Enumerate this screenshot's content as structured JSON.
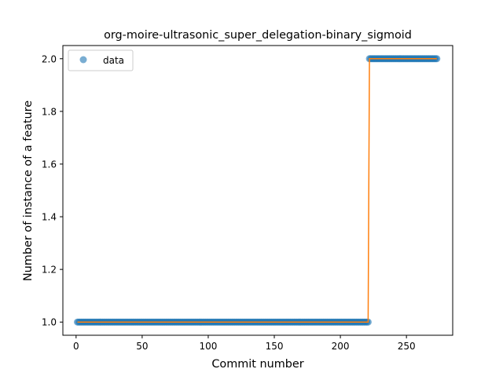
{
  "chart_data": {
    "type": "scatter",
    "title": "org-moire-ultrasonic_super_delegation-binary_sigmoid",
    "xlabel": "Commit number",
    "ylabel": "Number of instance of a feature",
    "xlim": [
      -10,
      285
    ],
    "ylim": [
      0.95,
      2.05
    ],
    "xticks": [
      0,
      50,
      100,
      150,
      200,
      250
    ],
    "yticks": [
      1.0,
      1.2,
      1.4,
      1.6,
      1.8,
      2.0
    ],
    "ytick_labels": [
      "1.0",
      "1.2",
      "1.4",
      "1.6",
      "1.8",
      "2.0"
    ],
    "grid": false,
    "legend": {
      "position": "upper-left",
      "entries": [
        "data"
      ]
    },
    "series": [
      {
        "name": "data",
        "kind": "points",
        "color": "#1f77b4",
        "segments": [
          {
            "x_start": 1,
            "x_end": 221,
            "y": 1.0
          },
          {
            "x_start": 222,
            "x_end": 273,
            "y": 2.0
          }
        ]
      },
      {
        "kind": "line",
        "color": "#ff7f0e",
        "x": [
          1,
          221,
          222,
          273
        ],
        "y": [
          1.0,
          1.0,
          2.0,
          2.0
        ]
      }
    ]
  }
}
